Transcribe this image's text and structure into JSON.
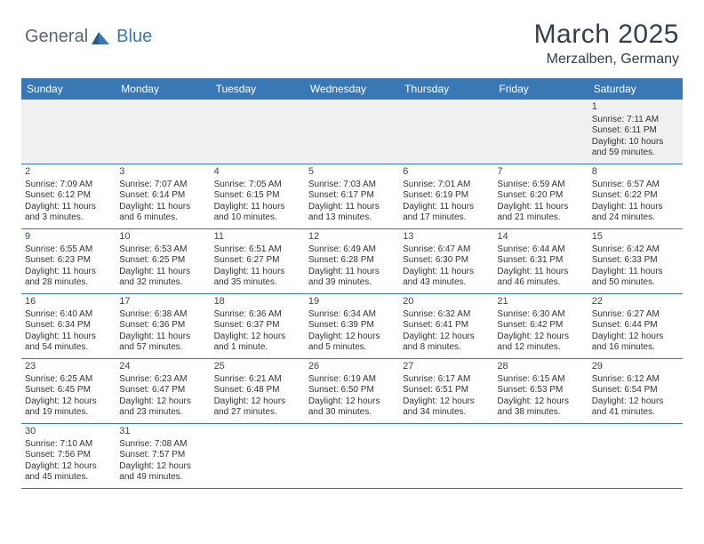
{
  "logo": {
    "general": "General",
    "blue": "Blue"
  },
  "title": "March 2025",
  "location": "Merzalben, Germany",
  "day_headers": [
    "Sunday",
    "Monday",
    "Tuesday",
    "Wednesday",
    "Thursday",
    "Friday",
    "Saturday"
  ],
  "colors": {
    "header_bg": "#3a78b5",
    "header_text": "#ffffff",
    "first_week_bg": "#f0f0f0",
    "border": "#3a78b5",
    "title_color": "#333f4a"
  },
  "weeks": [
    [
      {
        "num": "",
        "lines": []
      },
      {
        "num": "",
        "lines": []
      },
      {
        "num": "",
        "lines": []
      },
      {
        "num": "",
        "lines": []
      },
      {
        "num": "",
        "lines": []
      },
      {
        "num": "",
        "lines": []
      },
      {
        "num": "1",
        "lines": [
          "Sunrise: 7:11 AM",
          "Sunset: 6:11 PM",
          "Daylight: 10 hours",
          "and 59 minutes."
        ]
      }
    ],
    [
      {
        "num": "2",
        "lines": [
          "Sunrise: 7:09 AM",
          "Sunset: 6:12 PM",
          "Daylight: 11 hours",
          "and 3 minutes."
        ]
      },
      {
        "num": "3",
        "lines": [
          "Sunrise: 7:07 AM",
          "Sunset: 6:14 PM",
          "Daylight: 11 hours",
          "and 6 minutes."
        ]
      },
      {
        "num": "4",
        "lines": [
          "Sunrise: 7:05 AM",
          "Sunset: 6:15 PM",
          "Daylight: 11 hours",
          "and 10 minutes."
        ]
      },
      {
        "num": "5",
        "lines": [
          "Sunrise: 7:03 AM",
          "Sunset: 6:17 PM",
          "Daylight: 11 hours",
          "and 13 minutes."
        ]
      },
      {
        "num": "6",
        "lines": [
          "Sunrise: 7:01 AM",
          "Sunset: 6:19 PM",
          "Daylight: 11 hours",
          "and 17 minutes."
        ]
      },
      {
        "num": "7",
        "lines": [
          "Sunrise: 6:59 AM",
          "Sunset: 6:20 PM",
          "Daylight: 11 hours",
          "and 21 minutes."
        ]
      },
      {
        "num": "8",
        "lines": [
          "Sunrise: 6:57 AM",
          "Sunset: 6:22 PM",
          "Daylight: 11 hours",
          "and 24 minutes."
        ]
      }
    ],
    [
      {
        "num": "9",
        "lines": [
          "Sunrise: 6:55 AM",
          "Sunset: 6:23 PM",
          "Daylight: 11 hours",
          "and 28 minutes."
        ]
      },
      {
        "num": "10",
        "lines": [
          "Sunrise: 6:53 AM",
          "Sunset: 6:25 PM",
          "Daylight: 11 hours",
          "and 32 minutes."
        ]
      },
      {
        "num": "11",
        "lines": [
          "Sunrise: 6:51 AM",
          "Sunset: 6:27 PM",
          "Daylight: 11 hours",
          "and 35 minutes."
        ]
      },
      {
        "num": "12",
        "lines": [
          "Sunrise: 6:49 AM",
          "Sunset: 6:28 PM",
          "Daylight: 11 hours",
          "and 39 minutes."
        ]
      },
      {
        "num": "13",
        "lines": [
          "Sunrise: 6:47 AM",
          "Sunset: 6:30 PM",
          "Daylight: 11 hours",
          "and 43 minutes."
        ]
      },
      {
        "num": "14",
        "lines": [
          "Sunrise: 6:44 AM",
          "Sunset: 6:31 PM",
          "Daylight: 11 hours",
          "and 46 minutes."
        ]
      },
      {
        "num": "15",
        "lines": [
          "Sunrise: 6:42 AM",
          "Sunset: 6:33 PM",
          "Daylight: 11 hours",
          "and 50 minutes."
        ]
      }
    ],
    [
      {
        "num": "16",
        "lines": [
          "Sunrise: 6:40 AM",
          "Sunset: 6:34 PM",
          "Daylight: 11 hours",
          "and 54 minutes."
        ]
      },
      {
        "num": "17",
        "lines": [
          "Sunrise: 6:38 AM",
          "Sunset: 6:36 PM",
          "Daylight: 11 hours",
          "and 57 minutes."
        ]
      },
      {
        "num": "18",
        "lines": [
          "Sunrise: 6:36 AM",
          "Sunset: 6:37 PM",
          "Daylight: 12 hours",
          "and 1 minute."
        ]
      },
      {
        "num": "19",
        "lines": [
          "Sunrise: 6:34 AM",
          "Sunset: 6:39 PM",
          "Daylight: 12 hours",
          "and 5 minutes."
        ]
      },
      {
        "num": "20",
        "lines": [
          "Sunrise: 6:32 AM",
          "Sunset: 6:41 PM",
          "Daylight: 12 hours",
          "and 8 minutes."
        ]
      },
      {
        "num": "21",
        "lines": [
          "Sunrise: 6:30 AM",
          "Sunset: 6:42 PM",
          "Daylight: 12 hours",
          "and 12 minutes."
        ]
      },
      {
        "num": "22",
        "lines": [
          "Sunrise: 6:27 AM",
          "Sunset: 6:44 PM",
          "Daylight: 12 hours",
          "and 16 minutes."
        ]
      }
    ],
    [
      {
        "num": "23",
        "lines": [
          "Sunrise: 6:25 AM",
          "Sunset: 6:45 PM",
          "Daylight: 12 hours",
          "and 19 minutes."
        ]
      },
      {
        "num": "24",
        "lines": [
          "Sunrise: 6:23 AM",
          "Sunset: 6:47 PM",
          "Daylight: 12 hours",
          "and 23 minutes."
        ]
      },
      {
        "num": "25",
        "lines": [
          "Sunrise: 6:21 AM",
          "Sunset: 6:48 PM",
          "Daylight: 12 hours",
          "and 27 minutes."
        ]
      },
      {
        "num": "26",
        "lines": [
          "Sunrise: 6:19 AM",
          "Sunset: 6:50 PM",
          "Daylight: 12 hours",
          "and 30 minutes."
        ]
      },
      {
        "num": "27",
        "lines": [
          "Sunrise: 6:17 AM",
          "Sunset: 6:51 PM",
          "Daylight: 12 hours",
          "and 34 minutes."
        ]
      },
      {
        "num": "28",
        "lines": [
          "Sunrise: 6:15 AM",
          "Sunset: 6:53 PM",
          "Daylight: 12 hours",
          "and 38 minutes."
        ]
      },
      {
        "num": "29",
        "lines": [
          "Sunrise: 6:12 AM",
          "Sunset: 6:54 PM",
          "Daylight: 12 hours",
          "and 41 minutes."
        ]
      }
    ],
    [
      {
        "num": "30",
        "lines": [
          "Sunrise: 7:10 AM",
          "Sunset: 7:56 PM",
          "Daylight: 12 hours",
          "and 45 minutes."
        ]
      },
      {
        "num": "31",
        "lines": [
          "Sunrise: 7:08 AM",
          "Sunset: 7:57 PM",
          "Daylight: 12 hours",
          "and 49 minutes."
        ]
      },
      {
        "num": "",
        "lines": []
      },
      {
        "num": "",
        "lines": []
      },
      {
        "num": "",
        "lines": []
      },
      {
        "num": "",
        "lines": []
      },
      {
        "num": "",
        "lines": []
      }
    ]
  ]
}
